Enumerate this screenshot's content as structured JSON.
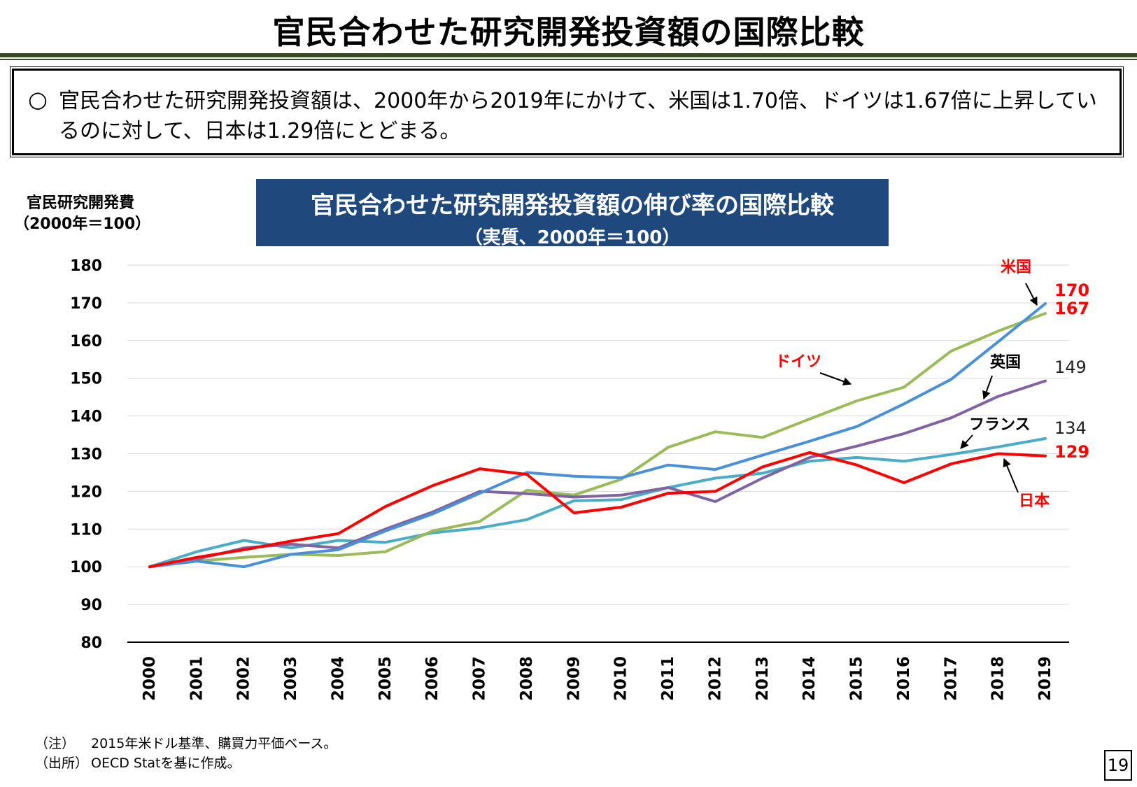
{
  "page": {
    "title": "官民合わせた研究開発投資額の国際比較",
    "summary_bullet": "○",
    "summary": "官民合わせた研究開発投資額は、2000年から2019年にかけて、米国は1.70倍、ドイツは1.67倍に上昇しているのに対して、日本は1.29倍にとどまる。",
    "y_unit_line1": "官民研究開発費",
    "y_unit_line2": "（2000年＝100）",
    "note_label": "（注）",
    "note_text": "2015年米ドル基準、購買力平価ベース。",
    "source_label": "（出所）",
    "source_text": "OECD Statを基に作成。",
    "page_number": "19"
  },
  "chart_data": {
    "type": "line",
    "title": "官民合わせた研究開発投資額の伸び率の国際比較",
    "subtitle": "（実質、2000年＝100）",
    "ylabel": "官民研究開発費（2000年＝100）",
    "ylim": [
      80,
      180
    ],
    "yticks": [
      80,
      90,
      100,
      110,
      120,
      130,
      140,
      150,
      160,
      170,
      180
    ],
    "grid": true,
    "x": [
      "2000",
      "2001",
      "2002",
      "2003",
      "2004",
      "2005",
      "2006",
      "2007",
      "2008",
      "2009",
      "2010",
      "2011",
      "2012",
      "2013",
      "2014",
      "2015",
      "2016",
      "2017",
      "2018",
      "2019"
    ],
    "series": [
      {
        "name": "フランス",
        "color": "#4bacc6",
        "end_label": "134",
        "end_label_color": "#222222",
        "values": [
          100,
          104,
          107,
          105,
          107,
          106.5,
          109,
          110.3,
          112.5,
          117.5,
          117.8,
          121,
          123.5,
          124.8,
          128,
          129,
          128,
          129.8,
          131.8,
          134
        ]
      },
      {
        "name": "ドイツ",
        "color": "#9bbb59",
        "end_label": "167",
        "end_label_color": "#ff0000",
        "values": [
          100,
          101.5,
          102.5,
          103.3,
          103,
          104,
          109.5,
          112,
          120.3,
          119,
          123.2,
          131.7,
          135.8,
          134.3,
          139.2,
          144,
          147.6,
          157.2,
          162.5,
          167.2
        ]
      },
      {
        "name": "英国",
        "color": "#8064a2",
        "end_label": "149",
        "end_label_color": "#222222",
        "values": [
          100,
          102,
          105,
          106,
          105,
          110,
          114.5,
          120,
          119.4,
          118.5,
          119,
          121,
          117.3,
          123.5,
          129,
          132,
          135.3,
          139.5,
          145.2,
          149.3
        ]
      },
      {
        "name": "米国",
        "color": "#4a90d9",
        "end_label": "170",
        "end_label_color": "#ff0000",
        "values": [
          100,
          101.5,
          100,
          103.3,
          104.5,
          109.5,
          114,
          119.5,
          125,
          124,
          123.6,
          127,
          125.8,
          129.6,
          133.3,
          137.2,
          143.2,
          149.7,
          159.7,
          169.8
        ]
      },
      {
        "name": "日本",
        "color": "#ff0000",
        "end_label": "129",
        "end_label_color": "#ff0000",
        "values": [
          100,
          102.5,
          104.5,
          106.8,
          108.8,
          116,
          121.5,
          126,
          124.5,
          114.3,
          115.8,
          119.5,
          120,
          126.5,
          130.3,
          127,
          122.3,
          127.3,
          130,
          129.4
        ]
      }
    ],
    "annotations": [
      {
        "text": "米国",
        "color": "#ff0000",
        "series": "米国"
      },
      {
        "text": "ドイツ",
        "color": "#ff0000",
        "series": "ドイツ"
      },
      {
        "text": "英国",
        "color": "#000000",
        "series": "英国"
      },
      {
        "text": "フランス",
        "color": "#000000",
        "series": "フランス"
      },
      {
        "text": "日本",
        "color": "#ff0000",
        "series": "日本"
      }
    ]
  }
}
